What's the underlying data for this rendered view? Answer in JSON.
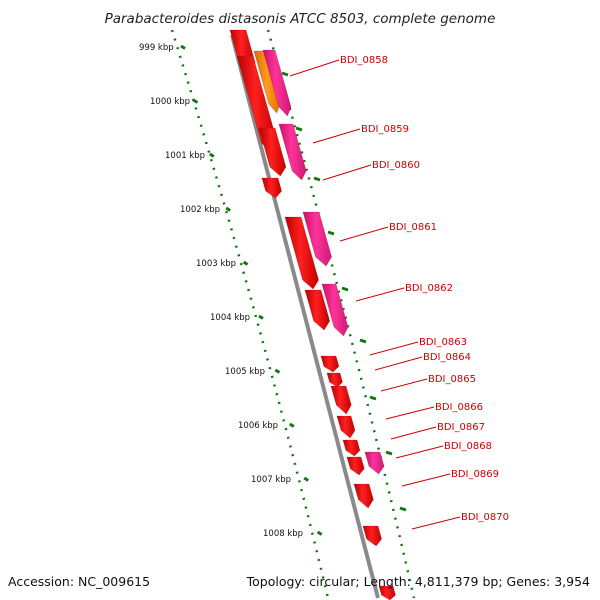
{
  "title": "Parabacteroides distasonis ATCC 8503, complete genome",
  "ticks": [
    "999 kbp",
    "1000 kbp",
    "1001 kbp",
    "1002 kbp",
    "1003 kbp",
    "1004 kbp",
    "1005 kbp",
    "1006 kbp",
    "1007 kbp",
    "1008 kbp"
  ],
  "genes": [
    "BDI_0858",
    "BDI_0859",
    "BDI_0860",
    "BDI_0861",
    "BDI_0862",
    "BDI_0863",
    "BDI_0864",
    "BDI_0865",
    "BDI_0866",
    "BDI_0867",
    "BDI_0868",
    "BDI_0869",
    "BDI_0870"
  ],
  "footer": {
    "accession": "Accession: NC_009615",
    "topology": "Topology: circular; Length: 4,811,379 bp; Genes: 3,954"
  },
  "colors": {
    "gene_red": "#ee1111",
    "gene_pink": "#ee2288",
    "gene_orange": "#ff8800",
    "backbone": "#888888",
    "tick_green": "#117711",
    "label_red": "#cc0000"
  }
}
